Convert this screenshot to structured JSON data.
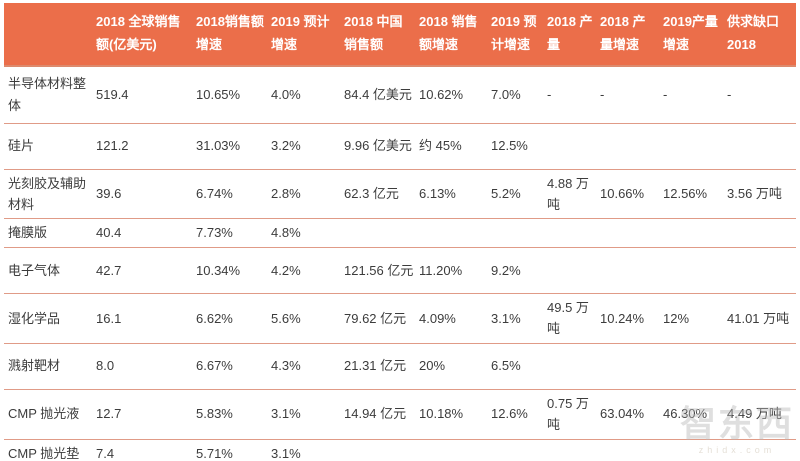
{
  "colors": {
    "header_bg": "#eb6e4a",
    "header_text": "#ffffff",
    "body_text": "#3c3c3c",
    "row_divider": "#e09b87",
    "table_bottom_border": "#c9704f"
  },
  "watermark": {
    "logo_text": "智东西",
    "url_text": "zhidx.com"
  },
  "chart_data": {
    "type": "table",
    "columns": [
      "",
      "2018 全球销售额(亿美元)",
      "2018销售额增速",
      "2019 预计增速",
      "2018 中国销售额",
      "2018 销售额增速",
      "2019 预计增速",
      "2018 产量",
      "2018 产量增速",
      "2019产量增速",
      "供求缺口 2018"
    ],
    "rows": [
      {
        "label": "半导体材料整体",
        "cells": [
          "519.4",
          "10.65%",
          "4.0%",
          "84.4 亿美元",
          "10.62%",
          "7.0%",
          "-",
          "-",
          "-",
          "-"
        ]
      },
      {
        "label": "硅片",
        "cells": [
          "121.2",
          "31.03%",
          "3.2%",
          "9.96 亿美元",
          "约 45%",
          "12.5%",
          "",
          "",
          "",
          ""
        ]
      },
      {
        "label": "光刻胶及辅助材料",
        "cells": [
          "39.6",
          "6.74%",
          "2.8%",
          "62.3 亿元",
          "6.13%",
          "5.2%",
          "4.88 万吨",
          "10.66%",
          "12.56%",
          "3.56 万吨"
        ]
      },
      {
        "label": "掩膜版",
        "cells": [
          "40.4",
          "7.73%",
          "4.8%",
          "",
          "",
          "",
          "",
          "",
          "",
          ""
        ]
      },
      {
        "label": "电子气体",
        "cells": [
          "42.7",
          "10.34%",
          "4.2%",
          "121.56 亿元",
          "11.20%",
          "9.2%",
          "",
          "",
          "",
          ""
        ]
      },
      {
        "label": "湿化学品",
        "cells": [
          "16.1",
          "6.62%",
          "5.6%",
          "79.62 亿元",
          "4.09%",
          "3.1%",
          "49.5 万吨",
          "10.24%",
          "12%",
          "41.01 万吨"
        ]
      },
      {
        "label": "溅射靶材",
        "cells": [
          "8.0",
          "6.67%",
          "4.3%",
          "21.31 亿元",
          "20%",
          "6.5%",
          "",
          "",
          "",
          ""
        ]
      },
      {
        "label": "CMP 抛光液",
        "cells": [
          "12.7",
          "5.83%",
          "3.1%",
          "14.94 亿元",
          "10.18%",
          "12.6%",
          "0.75 万吨",
          "63.04%",
          "46.30%",
          "4.49 万吨"
        ]
      },
      {
        "label": "CMP 抛光垫",
        "cells": [
          "7.4",
          "5.71%",
          "3.1%",
          "",
          "",
          "",
          "",
          "",
          "",
          ""
        ]
      }
    ]
  }
}
